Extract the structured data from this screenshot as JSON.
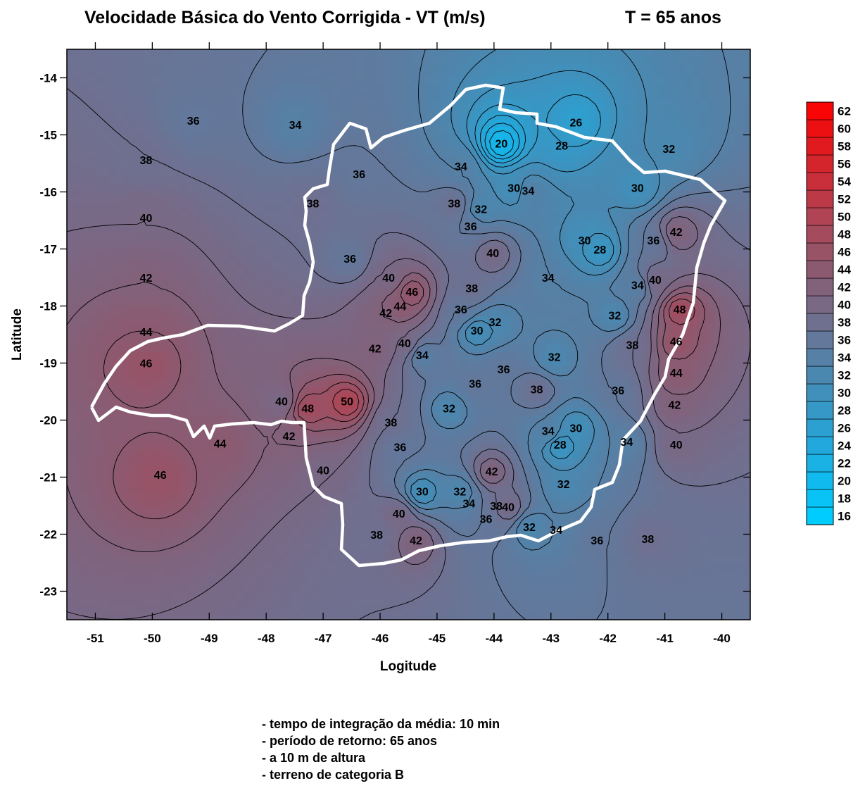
{
  "chart_data": {
    "type": "contour",
    "title": "Velocidade Básica do Vento Corrigida - VT (m/s)",
    "subtitle": "T = 65 anos",
    "x_label": "Logitude",
    "y_label": "Latitude",
    "xlim": [
      -51.5,
      -39.5
    ],
    "xticks": [
      -51,
      -50,
      -49,
      -48,
      -47,
      -46,
      -45,
      -44,
      -43,
      -42,
      -41,
      -40
    ],
    "ylim": [
      -23.5,
      -13.5
    ],
    "yticks": [
      -14,
      -15,
      -16,
      -17,
      -18,
      -19,
      -20,
      -21,
      -22,
      -23
    ],
    "colorbar": {
      "clim": [
        15,
        63
      ],
      "ticks": [
        16,
        18,
        20,
        22,
        24,
        26,
        28,
        30,
        32,
        34,
        36,
        38,
        40,
        42,
        44,
        46,
        48,
        50,
        52,
        54,
        56,
        58,
        60,
        62
      ],
      "colorscale": [
        [
          16,
          "#00ccff"
        ],
        [
          24,
          "#22a8dc"
        ],
        [
          32,
          "#4a88b0"
        ],
        [
          38,
          "#6f7090"
        ],
        [
          44,
          "#8c5a70"
        ],
        [
          50,
          "#b04454"
        ],
        [
          63,
          "#ff0000"
        ]
      ]
    },
    "contour_labels": [
      {
        "x": -49.28,
        "y": -14.77,
        "value": 36
      },
      {
        "x": -47.49,
        "y": -14.84,
        "value": 34
      },
      {
        "x": -50.11,
        "y": -15.46,
        "value": 38
      },
      {
        "x": -50.11,
        "y": -16.47,
        "value": 40
      },
      {
        "x": -50.11,
        "y": -17.52,
        "value": 42
      },
      {
        "x": -50.11,
        "y": -18.47,
        "value": 44
      },
      {
        "x": -50.11,
        "y": -19.02,
        "value": 46
      },
      {
        "x": -49.86,
        "y": -20.98,
        "value": 46
      },
      {
        "x": -46.37,
        "y": -15.71,
        "value": 36
      },
      {
        "x": -47.18,
        "y": -16.22,
        "value": 38
      },
      {
        "x": -46.53,
        "y": -17.19,
        "value": 36
      },
      {
        "x": -45.85,
        "y": -17.52,
        "value": 40
      },
      {
        "x": -45.44,
        "y": -17.77,
        "value": 46
      },
      {
        "x": -45.65,
        "y": -18.02,
        "value": 44
      },
      {
        "x": -45.9,
        "y": -18.14,
        "value": 42
      },
      {
        "x": -46.09,
        "y": -18.76,
        "value": 42
      },
      {
        "x": -45.57,
        "y": -18.67,
        "value": 40
      },
      {
        "x": -46.58,
        "y": -19.69,
        "value": 50
      },
      {
        "x": -47.27,
        "y": -19.81,
        "value": 48
      },
      {
        "x": -47.73,
        "y": -19.69,
        "value": 40
      },
      {
        "x": -47.6,
        "y": -20.3,
        "value": 42
      },
      {
        "x": -48.81,
        "y": -20.43,
        "value": 44
      },
      {
        "x": -47.0,
        "y": -20.9,
        "value": 40
      },
      {
        "x": -45.81,
        "y": -20.06,
        "value": 38
      },
      {
        "x": -45.65,
        "y": -20.49,
        "value": 36
      },
      {
        "x": -45.26,
        "y": -18.88,
        "value": 34
      },
      {
        "x": -44.79,
        "y": -19.81,
        "value": 32
      },
      {
        "x": -44.39,
        "y": -17.71,
        "value": 38
      },
      {
        "x": -44.58,
        "y": -18.08,
        "value": 36
      },
      {
        "x": -44.3,
        "y": -18.45,
        "value": 30
      },
      {
        "x": -43.98,
        "y": -18.3,
        "value": 32
      },
      {
        "x": -44.33,
        "y": -19.38,
        "value": 36
      },
      {
        "x": -43.83,
        "y": -19.13,
        "value": 36
      },
      {
        "x": -44.02,
        "y": -17.09,
        "value": 40
      },
      {
        "x": -44.7,
        "y": -16.22,
        "value": 38
      },
      {
        "x": -44.41,
        "y": -16.62,
        "value": 36
      },
      {
        "x": -44.23,
        "y": -16.32,
        "value": 32
      },
      {
        "x": -44.58,
        "y": -15.57,
        "value": 34
      },
      {
        "x": -43.65,
        "y": -15.95,
        "value": 30
      },
      {
        "x": -43.4,
        "y": -16.0,
        "value": 34
      },
      {
        "x": -43.87,
        "y": -15.17,
        "value": 20
      },
      {
        "x": -42.81,
        "y": -15.21,
        "value": 28
      },
      {
        "x": -42.56,
        "y": -14.8,
        "value": 26
      },
      {
        "x": -40.93,
        "y": -15.26,
        "value": 32
      },
      {
        "x": -41.48,
        "y": -15.95,
        "value": 30
      },
      {
        "x": -42.14,
        "y": -17.03,
        "value": 28
      },
      {
        "x": -42.41,
        "y": -16.87,
        "value": 30
      },
      {
        "x": -43.05,
        "y": -17.52,
        "value": 34
      },
      {
        "x": -41.2,
        "y": -16.87,
        "value": 36
      },
      {
        "x": -40.8,
        "y": -16.72,
        "value": 42
      },
      {
        "x": -41.17,
        "y": -17.56,
        "value": 40
      },
      {
        "x": -41.48,
        "y": -17.65,
        "value": 34
      },
      {
        "x": -41.88,
        "y": -18.18,
        "value": 32
      },
      {
        "x": -40.74,
        "y": -18.08,
        "value": 48
      },
      {
        "x": -40.8,
        "y": -18.64,
        "value": 46
      },
      {
        "x": -40.8,
        "y": -19.19,
        "value": 44
      },
      {
        "x": -40.83,
        "y": -19.75,
        "value": 42
      },
      {
        "x": -40.8,
        "y": -20.45,
        "value": 40
      },
      {
        "x": -41.57,
        "y": -18.7,
        "value": 38
      },
      {
        "x": -41.82,
        "y": -19.5,
        "value": 36
      },
      {
        "x": -41.67,
        "y": -20.4,
        "value": 34
      },
      {
        "x": -43.25,
        "y": -19.48,
        "value": 38
      },
      {
        "x": -42.94,
        "y": -18.91,
        "value": 32
      },
      {
        "x": -42.56,
        "y": -20.16,
        "value": 30
      },
      {
        "x": -42.84,
        "y": -20.45,
        "value": 28
      },
      {
        "x": -43.05,
        "y": -20.21,
        "value": 34
      },
      {
        "x": -42.78,
        "y": -21.14,
        "value": 32
      },
      {
        "x": -44.04,
        "y": -20.92,
        "value": 42
      },
      {
        "x": -45.26,
        "y": -21.27,
        "value": 30
      },
      {
        "x": -44.6,
        "y": -21.27,
        "value": 32
      },
      {
        "x": -44.44,
        "y": -21.48,
        "value": 34
      },
      {
        "x": -43.96,
        "y": -21.52,
        "value": 38
      },
      {
        "x": -43.75,
        "y": -21.54,
        "value": 40
      },
      {
        "x": -44.14,
        "y": -21.75,
        "value": 36
      },
      {
        "x": -45.67,
        "y": -21.66,
        "value": 40
      },
      {
        "x": -46.06,
        "y": -22.03,
        "value": 38
      },
      {
        "x": -45.37,
        "y": -22.13,
        "value": 42
      },
      {
        "x": -43.38,
        "y": -21.89,
        "value": 32
      },
      {
        "x": -42.91,
        "y": -21.94,
        "value": 34
      },
      {
        "x": -42.19,
        "y": -22.13,
        "value": 36
      },
      {
        "x": -41.3,
        "y": -22.1,
        "value": 38
      }
    ],
    "notes": [
      "- tempo de integração da média: 10 min",
      "- período de retorno: 65 anos",
      "- a 10 m de altura",
      "- terreno de categoria B"
    ]
  }
}
